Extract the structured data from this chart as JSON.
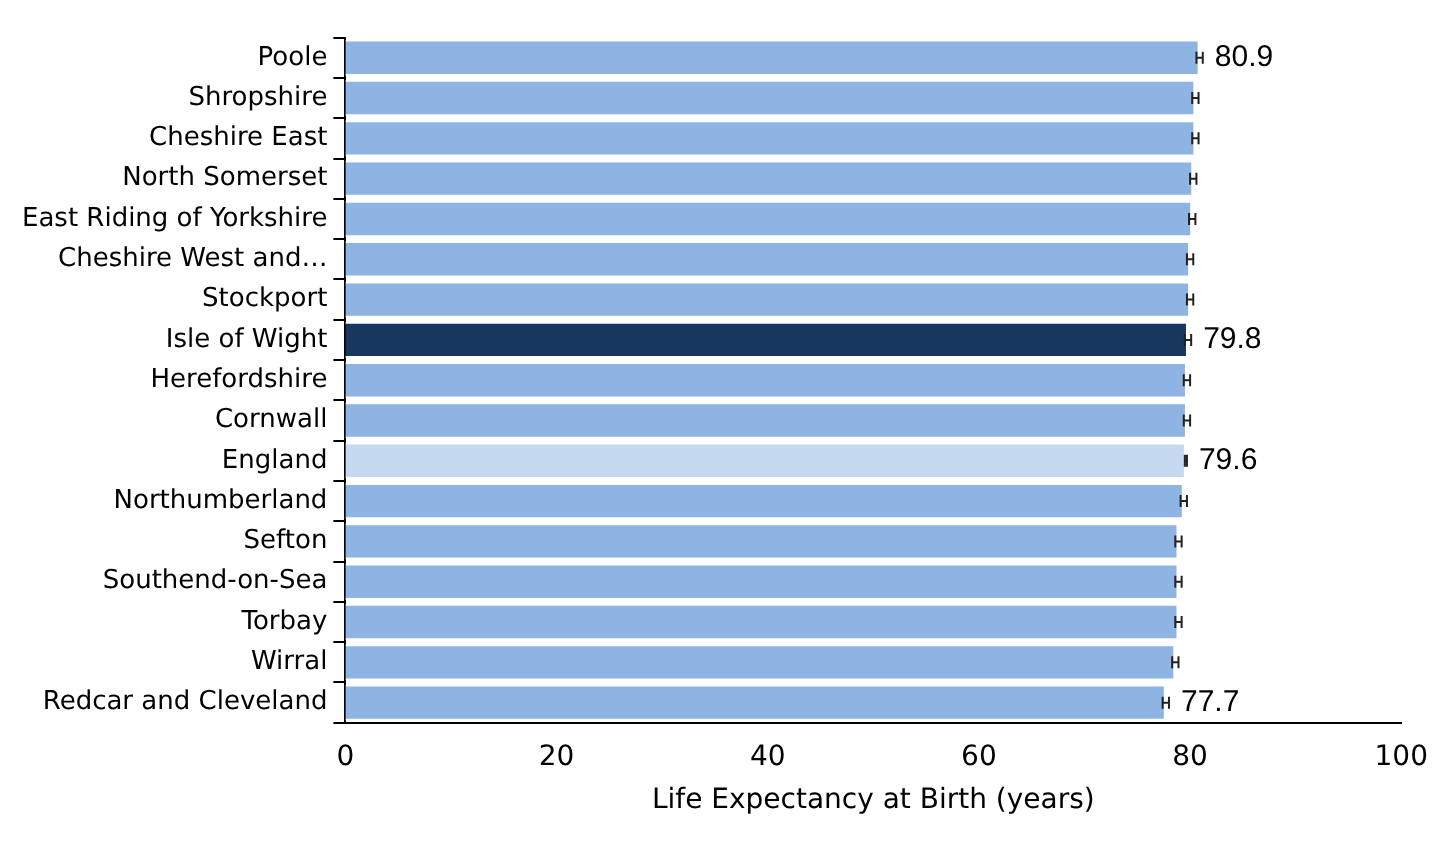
{
  "chart_data": {
    "type": "bar",
    "orientation": "horizontal",
    "xlabel": "Life Expectancy at Birth (years)",
    "categories": [
      "Poole",
      "Shropshire",
      "Cheshire East",
      "North Somerset",
      "East Riding of Yorkshire",
      "Cheshire West and…",
      "Stockport",
      "Isle of Wight",
      "Herefordshire",
      "Cornwall",
      "England",
      "Northumberland",
      "Sefton",
      "Southend-on-Sea",
      "Torbay",
      "Wirral",
      "Redcar and Cleveland"
    ],
    "values": [
      80.9,
      80.5,
      80.5,
      80.3,
      80.2,
      80.0,
      80.0,
      79.8,
      79.7,
      79.7,
      79.6,
      79.4,
      78.9,
      78.9,
      78.9,
      78.6,
      77.7
    ],
    "errors": [
      0.3,
      0.3,
      0.3,
      0.3,
      0.3,
      0.3,
      0.3,
      0.3,
      0.3,
      0.3,
      0.1,
      0.3,
      0.3,
      0.3,
      0.3,
      0.3,
      0.3
    ],
    "colors": [
      "#8db4e3",
      "#8db4e3",
      "#8db4e3",
      "#8db4e3",
      "#8db4e3",
      "#8db4e3",
      "#8db4e3",
      "#17375e",
      "#8db4e3",
      "#8db4e3",
      "#c5d9f1",
      "#8db4e3",
      "#8db4e3",
      "#8db4e3",
      "#8db4e3",
      "#8db4e3",
      "#8db4e3"
    ],
    "value_labels": [
      "80.9",
      null,
      null,
      null,
      null,
      null,
      null,
      "79.8",
      null,
      null,
      "79.6",
      null,
      null,
      null,
      null,
      null,
      "77.7"
    ],
    "xlim": [
      0,
      100
    ],
    "xticks": [
      0,
      20,
      40,
      60,
      80,
      100
    ],
    "grid": false,
    "legend": false
  }
}
